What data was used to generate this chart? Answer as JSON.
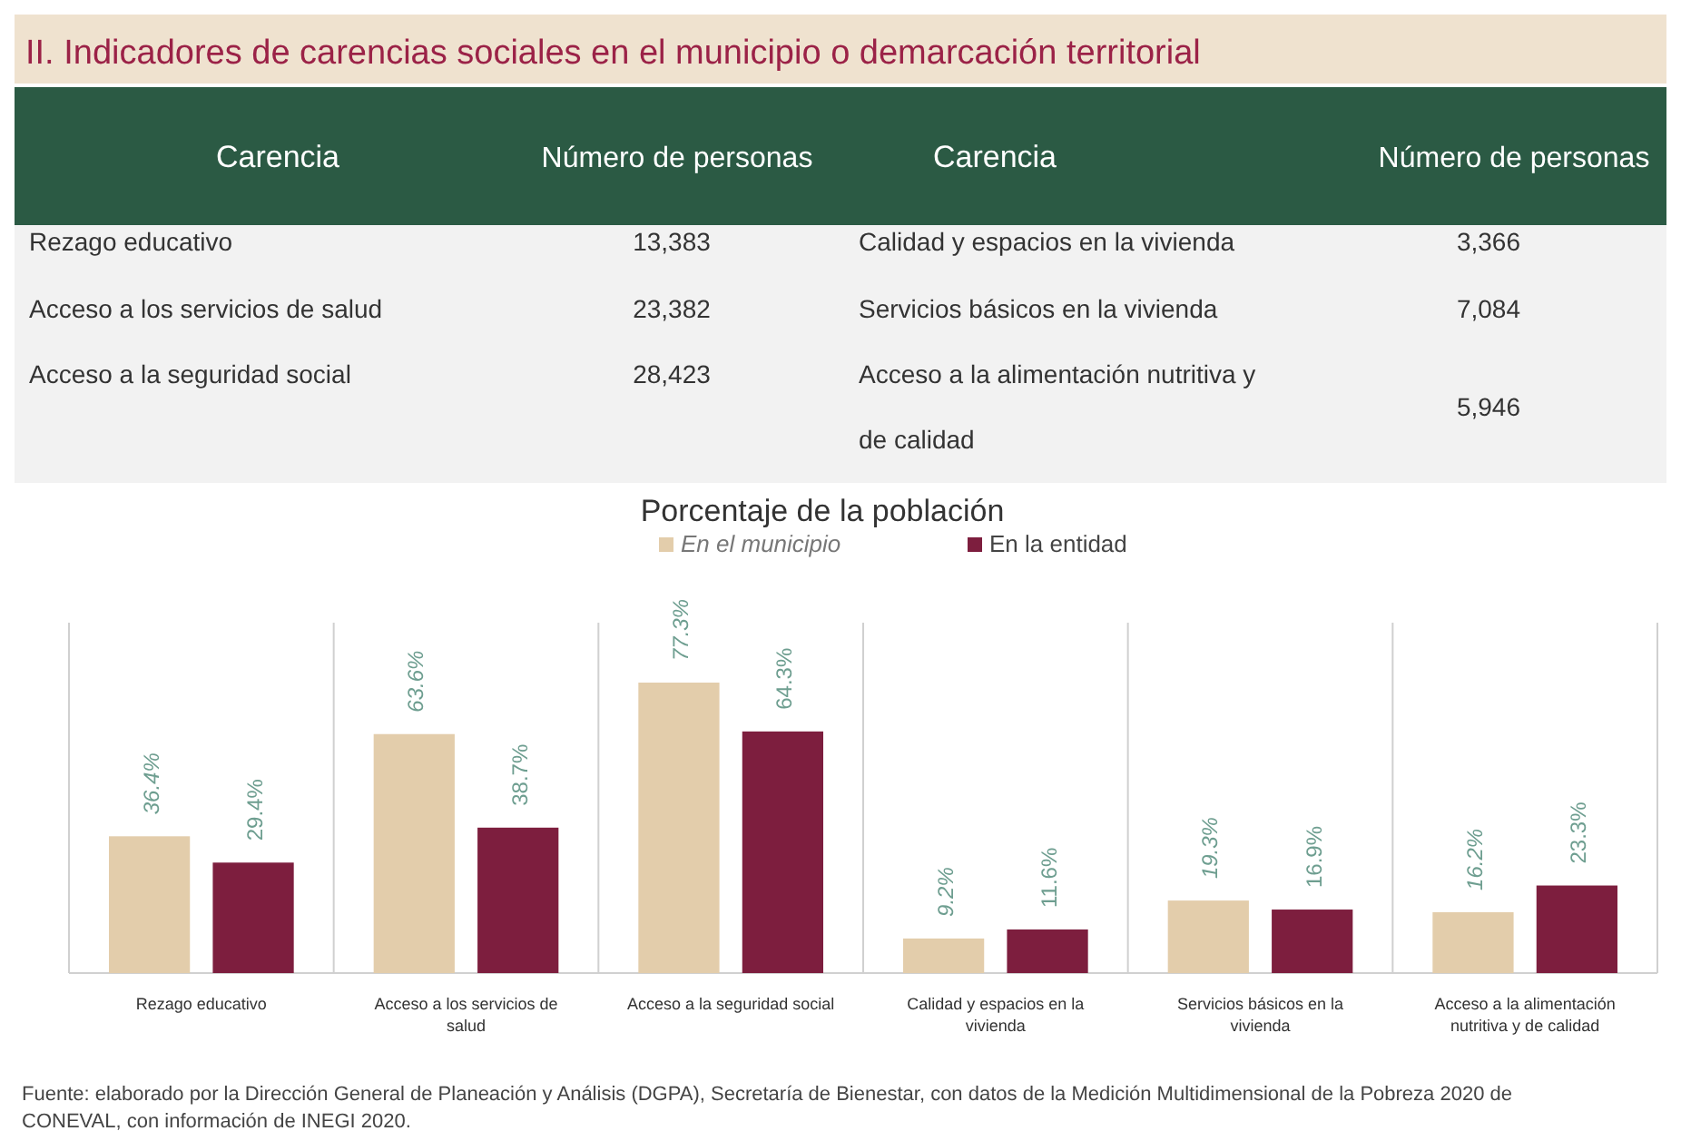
{
  "chart_data": [
    {
      "type": "other",
      "title": "II. Indicadores de carencias sociales en el municipio o demarcación territorial",
      "annotations": [
        "Carencia",
        "Número de personas",
        "Carencia",
        "Número de personas",
        "Rezago educativo",
        "13,383",
        "Calidad y espacios en la vivienda",
        "3,366",
        "Acceso a los servicios de salud",
        "23,382",
        "Servicios básicos en la vivienda",
        "7,084",
        "Acceso a la seguridad social",
        "28,423",
        "Acceso a la alimentación nutritiva y de calidad",
        "5,946"
      ]
    },
    {
      "type": "bar",
      "title": "Porcentaje de la población",
      "categories": [
        "Rezago educativo",
        "Acceso a los servicios de salud",
        "Acceso a la seguridad social",
        "Calidad y espacios en la vivienda",
        "Servicios básicos en la vivienda",
        "Acceso a la alimentación nutritiva y de calidad"
      ],
      "series": [
        {
          "name": "En el municipio",
          "color": "#e3cdab",
          "values": [
            36.4,
            63.6,
            77.3,
            9.2,
            19.3,
            16.2
          ],
          "value_labels": [
            "36.4%",
            "63.6%",
            "77.3%",
            "9.2%",
            "19.3%",
            "16.2%"
          ]
        },
        {
          "name": "En la entidad",
          "color": "#7d1e3e",
          "values": [
            29.4,
            38.7,
            64.3,
            11.6,
            16.9,
            23.3
          ],
          "value_labels": [
            "29.4%",
            "38.7%",
            "64.3%",
            "11.6%",
            "16.9%",
            "23.3%"
          ]
        }
      ],
      "legend": "top",
      "annotations": [
        "Fuente: elaborado por la Dirección General de Planeación y Análisis (DGPA), Secretaría de Bienestar, con datos de la Medición Multidimensional de la Pobreza 2020 de CONEVAL, con información de INEGI 2020."
      ]
    }
  ]
}
